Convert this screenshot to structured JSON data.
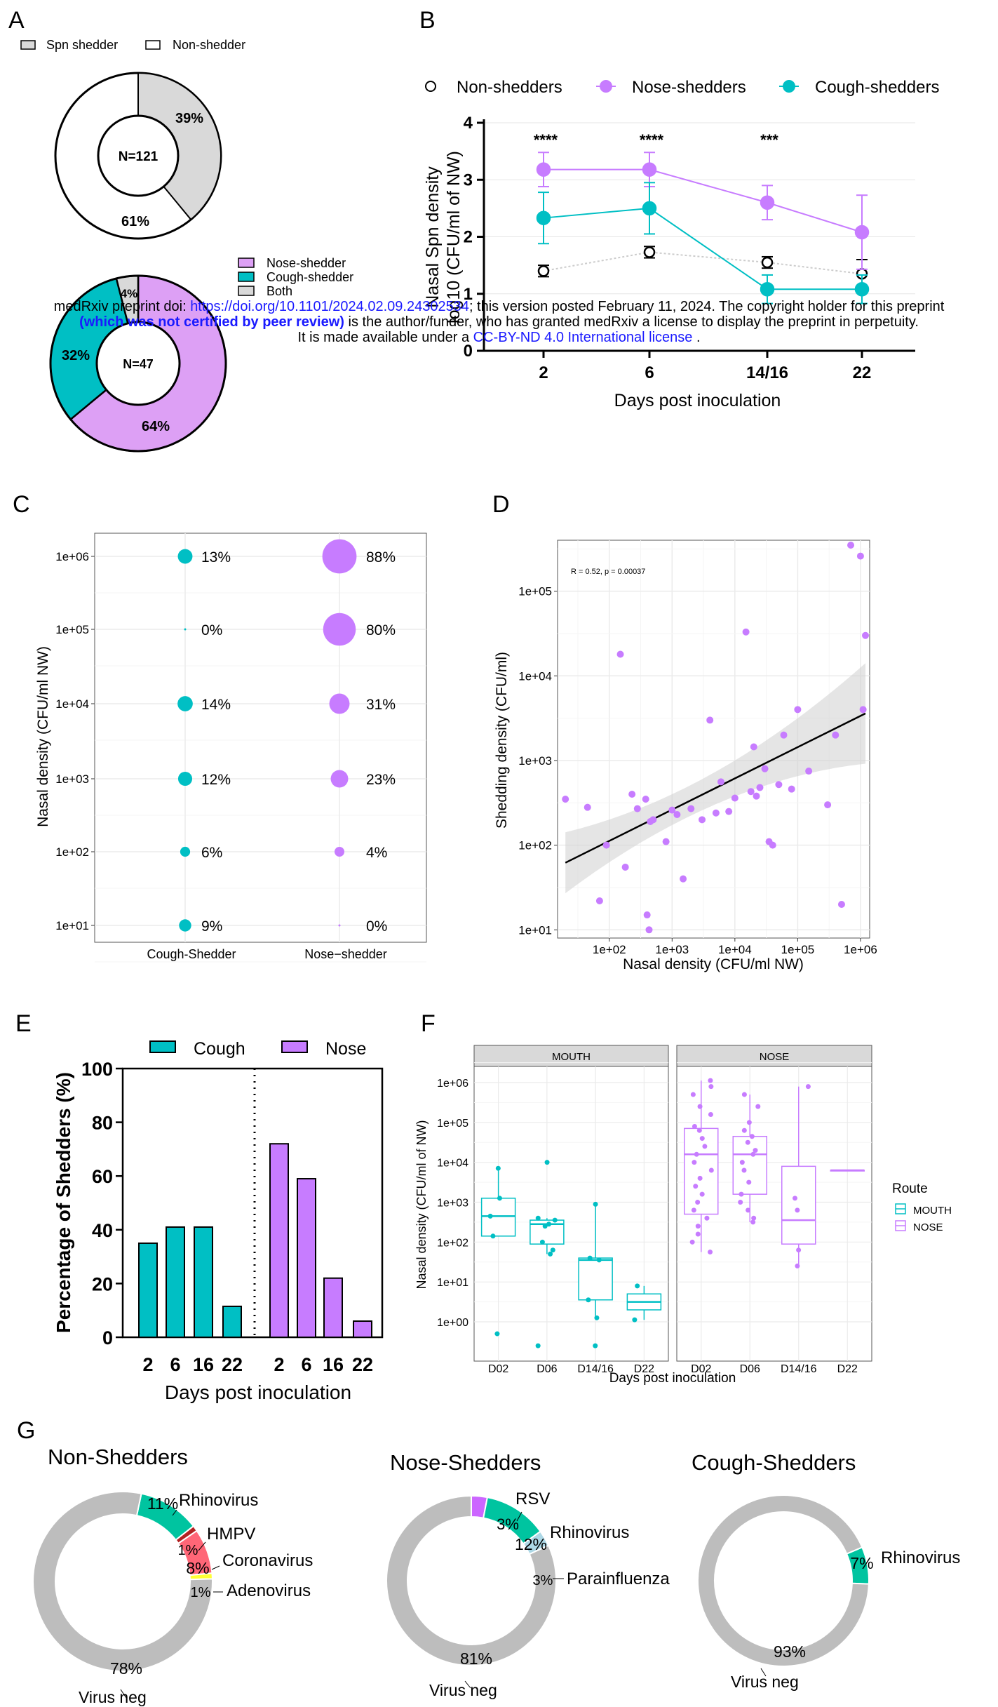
{
  "colors": {
    "cough": "#00bfc4",
    "nose": "#c77cff",
    "nose_light": "#dda0f5",
    "both": "#d9d9d9",
    "spn": "#d9d9d9",
    "grey": "#bdbdbd",
    "rsv": "#cc66ff",
    "hmpv": "#b22222",
    "corona": "#ff6677",
    "adeno": "#ffff33",
    "parainfluenza": "#add8e6",
    "rhino": "#00c4a0"
  },
  "panels": {
    "A": "A",
    "B": "B",
    "C": "C",
    "D": "D",
    "E": "E",
    "F": "F",
    "G": "G"
  },
  "watermark": {
    "line1_pre": "medRxiv preprint doi: ",
    "line1_link": "https://doi.org/10.1101/2024.02.09.24302534",
    "line1_post": "; this version posted February 11, 2024. The copyright holder for this preprint",
    "line2_bold": "(which was not certified by peer review)",
    "line2_post": " is the author/funder, who has granted medRxiv a license to display the preprint in perpetuity.",
    "line3_pre": "It is made available under a ",
    "line3_link": "CC-BY-ND 4.0 International license",
    "line3_post": " ."
  },
  "chart_data": [
    {
      "id": "A1",
      "type": "pie",
      "donut": true,
      "center_label": "N=121",
      "legend": [
        "Spn shedder",
        "Non-shedder"
      ],
      "slices": [
        {
          "name": "Spn shedder",
          "value": 39,
          "label": "39%"
        },
        {
          "name": "Non-shedder",
          "value": 61,
          "label": "61%"
        }
      ]
    },
    {
      "id": "A2",
      "type": "pie",
      "donut": true,
      "center_label": "N=47",
      "legend": [
        "Nose-shedder",
        "Cough-shedder",
        "Both"
      ],
      "slices": [
        {
          "name": "Nose-shedder",
          "value": 64,
          "label": "64%"
        },
        {
          "name": "Cough-shedder",
          "value": 32,
          "label": "32%"
        },
        {
          "name": "Both",
          "value": 4,
          "label": "4%"
        }
      ]
    },
    {
      "id": "B",
      "type": "line",
      "xlabel": "Days post inoculation",
      "ylabel_line1": "Nasal Spn density",
      "ylabel_line2": "log10 (CFU/ml of NW)",
      "categories": [
        "2",
        "6",
        "14/16",
        "22"
      ],
      "ylim": [
        0,
        4
      ],
      "yticks": [
        "0",
        "1",
        "2",
        "3",
        "4"
      ],
      "significance": [
        {
          "x": "2",
          "label": "****"
        },
        {
          "x": "6",
          "label": "****"
        },
        {
          "x": "14/16",
          "label": "***"
        }
      ],
      "series": [
        {
          "name": "Non-shedders",
          "values": [
            1.4,
            1.73,
            1.55,
            1.35
          ],
          "err": [
            0.1,
            0.1,
            0.1,
            0.25
          ]
        },
        {
          "name": "Nose-shedders",
          "values": [
            3.18,
            3.18,
            2.6,
            2.08
          ],
          "err": [
            0.3,
            0.3,
            0.3,
            0.65
          ]
        },
        {
          "name": "Cough-shedders",
          "values": [
            2.33,
            2.5,
            1.08,
            1.08
          ],
          "err": [
            0.45,
            0.45,
            0.25,
            0.25
          ]
        }
      ]
    },
    {
      "id": "C",
      "type": "scatter",
      "subtype": "bubble",
      "ylabel": "Nasal density (CFU/ml NW)",
      "categories": [
        "Cough-Shedder",
        "Nose−shedder"
      ],
      "yticks": [
        "1e+01",
        "1e+02",
        "1e+03",
        "1e+04",
        "1e+05",
        "1e+06"
      ],
      "points": [
        {
          "x": "Cough-Shedder",
          "y": "1e+06",
          "label": "13%",
          "value": 13
        },
        {
          "x": "Cough-Shedder",
          "y": "1e+05",
          "label": "0%",
          "value": 0
        },
        {
          "x": "Cough-Shedder",
          "y": "1e+04",
          "label": "14%",
          "value": 14
        },
        {
          "x": "Cough-Shedder",
          "y": "1e+03",
          "label": "12%",
          "value": 12
        },
        {
          "x": "Cough-Shedder",
          "y": "1e+02",
          "label": "6%",
          "value": 6
        },
        {
          "x": "Cough-Shedder",
          "y": "1e+01",
          "label": "9%",
          "value": 9
        },
        {
          "x": "Nose−shedder",
          "y": "1e+06",
          "label": "88%",
          "value": 88
        },
        {
          "x": "Nose−shedder",
          "y": "1e+05",
          "label": "80%",
          "value": 80
        },
        {
          "x": "Nose−shedder",
          "y": "1e+04",
          "label": "31%",
          "value": 31
        },
        {
          "x": "Nose−shedder",
          "y": "1e+03",
          "label": "23%",
          "value": 23
        },
        {
          "x": "Nose−shedder",
          "y": "1e+02",
          "label": "4%",
          "value": 4
        },
        {
          "x": "Nose−shedder",
          "y": "1e+01",
          "label": "0%",
          "value": 0
        }
      ]
    },
    {
      "id": "D",
      "type": "scatter",
      "xlabel": "Nasal density (CFU/ml NW)",
      "ylabel": "Shedding density (CFU/ml)",
      "annotation": "R = 0.52, p = 0.00037",
      "log_x": true,
      "log_y": true,
      "xticks": [
        "1e+02",
        "1e+03",
        "1e+04",
        "1e+05",
        "1e+06"
      ],
      "yticks": [
        "1e+01",
        "1e+02",
        "1e+03",
        "1e+04",
        "1e+05"
      ],
      "xlim": [
        15,
        1400000
      ],
      "ylim": [
        8,
        400000
      ],
      "fit": {
        "x": [
          20,
          1200000
        ],
        "y": [
          62,
          3600
        ]
      },
      "x": [
        20,
        45,
        70,
        90,
        150,
        180,
        230,
        400,
        430,
        500,
        800,
        1000,
        1200,
        1500,
        2000,
        3000,
        4000,
        5000,
        6000,
        8000,
        10000,
        15000,
        18000,
        20000,
        22000,
        25000,
        30000,
        35000,
        40000,
        50000,
        60000,
        80000,
        100000,
        150000,
        300000,
        400000,
        500000,
        700000,
        1000000,
        1100000,
        1200000,
        380,
        450,
        280
      ],
      "y": [
        350,
        280,
        22,
        100,
        18000,
        55,
        400,
        15,
        10,
        200,
        110,
        260,
        230,
        40,
        270,
        200,
        3000,
        240,
        560,
        250,
        360,
        33000,
        430,
        1450,
        380,
        480,
        800,
        110,
        100,
        520,
        2000,
        460,
        4000,
        750,
        300,
        2000,
        20,
        350000,
        260000,
        4000,
        30000,
        350,
        190,
        270
      ]
    },
    {
      "id": "E",
      "type": "bar",
      "xlabel": "Days post inoculation",
      "ylabel": "Percentage of Shedders  (%)",
      "ylim": [
        0,
        100
      ],
      "yticks": [
        "0",
        "20",
        "40",
        "60",
        "80",
        "100"
      ],
      "categories": [
        "2",
        "6",
        "16",
        "22"
      ],
      "series": [
        {
          "name": "Cough",
          "values": [
            35,
            41,
            41,
            11.5
          ]
        },
        {
          "name": "Nose",
          "values": [
            72,
            59,
            22,
            6
          ]
        }
      ]
    },
    {
      "id": "F",
      "type": "scatter",
      "subtype": "boxplot",
      "xlabel": "Days post inoculation",
      "ylabel": "Nasal density (CFU/ml of NW)",
      "facets": [
        "MOUTH",
        "NOSE"
      ],
      "categories": [
        "D02",
        "D06",
        "D14/16",
        "D22"
      ],
      "yticks": [
        "1e+00",
        "1e+01",
        "1e+02",
        "1e+03",
        "1e+04",
        "1e+05",
        "1e+06"
      ],
      "legend_title": "Route",
      "legend": [
        "MOUTH",
        "NOSE"
      ],
      "boxes": [
        {
          "facet": "MOUTH",
          "x": "D02",
          "q1": 2.15,
          "med": 2.65,
          "q3": 3.1,
          "lo": 2.15,
          "hi": 3.85,
          "pts": [
            3.85,
            3.1,
            2.65,
            2.15,
            -0.3
          ]
        },
        {
          "facet": "MOUTH",
          "x": "D06",
          "q1": 1.95,
          "med": 2.45,
          "q3": 2.55,
          "lo": 1.7,
          "hi": 2.6,
          "pts": [
            4.0,
            2.6,
            2.55,
            2.45,
            2.4,
            2.0,
            1.8,
            1.7,
            -0.6
          ]
        },
        {
          "facet": "MOUTH",
          "x": "D14/16",
          "q1": 0.55,
          "med": 1.55,
          "q3": 1.6,
          "lo": 0.1,
          "hi": 2.95,
          "pts": [
            2.95,
            1.6,
            1.55,
            0.55,
            0.1,
            -0.6
          ]
        },
        {
          "facet": "MOUTH",
          "x": "D22",
          "q1": 0.3,
          "med": 0.5,
          "q3": 0.7,
          "lo": 0.05,
          "hi": 0.9,
          "pts": [
            0.9,
            0.05
          ]
        },
        {
          "facet": "NOSE",
          "x": "D02",
          "q1": 2.7,
          "med": 4.2,
          "q3": 4.85,
          "lo": 1.75,
          "hi": 6.05,
          "pts": [
            6.05,
            5.9,
            5.7,
            5.4,
            5.2,
            4.9,
            4.8,
            4.6,
            4.4,
            4.2,
            4.0,
            3.8,
            3.6,
            3.4,
            3.2,
            3.0,
            2.8,
            2.6,
            2.4,
            2.2,
            2.0,
            1.75
          ]
        },
        {
          "facet": "NOSE",
          "x": "D06",
          "q1": 3.2,
          "med": 4.2,
          "q3": 4.65,
          "lo": 2.5,
          "hi": 5.7,
          "pts": [
            5.7,
            5.4,
            5.0,
            4.8,
            4.65,
            4.5,
            4.3,
            4.2,
            4.0,
            3.8,
            3.5,
            3.2,
            3.0,
            2.8,
            2.6,
            2.5
          ]
        },
        {
          "facet": "NOSE",
          "x": "D14/16",
          "q1": 1.95,
          "med": 2.55,
          "q3": 3.9,
          "lo": 1.4,
          "hi": 5.9,
          "pts": [
            5.9,
            3.1,
            2.8,
            1.8,
            1.4
          ]
        },
        {
          "facet": "NOSE",
          "x": "D22",
          "q1": 3.8,
          "med": 3.8,
          "q3": 3.8,
          "lo": 3.8,
          "hi": 3.8,
          "pts": []
        }
      ]
    },
    {
      "id": "G1",
      "type": "pie",
      "donut": true,
      "title": "Non-Shedders",
      "slices": [
        {
          "name": "Rhinovirus",
          "value": 11,
          "label": "11%"
        },
        {
          "name": "HMPV",
          "value": 1,
          "label": "1%"
        },
        {
          "name": "Coronavirus",
          "value": 8,
          "label": "8%"
        },
        {
          "name": "Adenovirus",
          "value": 1,
          "label": "1%"
        },
        {
          "name": "Virus neg",
          "value": 78,
          "label": "78%"
        }
      ]
    },
    {
      "id": "G2",
      "type": "pie",
      "donut": true,
      "title": "Nose-Shedders",
      "slices": [
        {
          "name": "RSV",
          "value": 3,
          "label": "3%"
        },
        {
          "name": "Rhinovirus",
          "value": 12,
          "label": "12%"
        },
        {
          "name": "Parainfluenza",
          "value": 3,
          "label": "3%"
        },
        {
          "name": "Virus neg",
          "value": 81,
          "label": "81%"
        }
      ]
    },
    {
      "id": "G3",
      "type": "pie",
      "donut": true,
      "title": "Cough-Shedders",
      "slices": [
        {
          "name": "Rhinovirus",
          "value": 7,
          "label": "7%"
        },
        {
          "name": "Virus neg",
          "value": 93,
          "label": "93%"
        }
      ]
    }
  ]
}
